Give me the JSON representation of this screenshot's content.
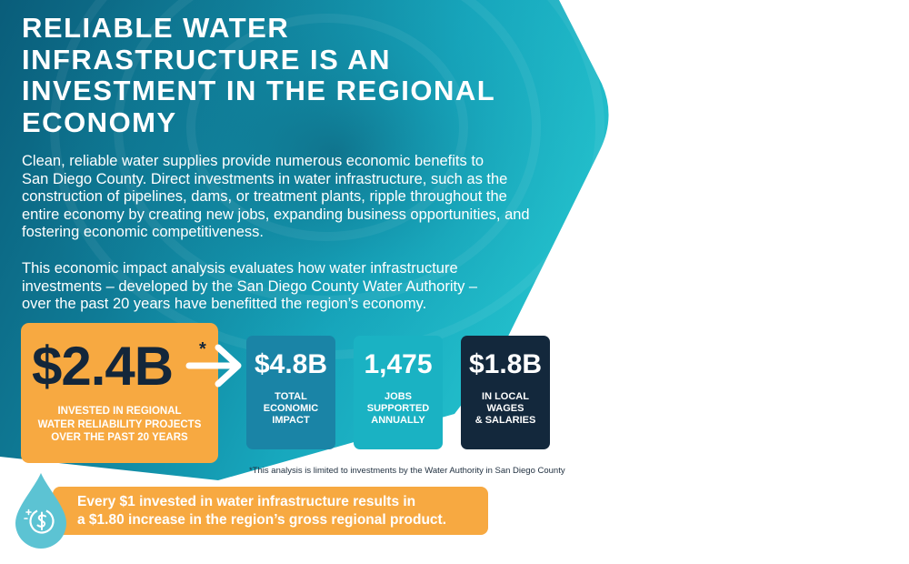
{
  "headline": {
    "lines": [
      "RELIABLE WATER",
      "INFRASTRUCTURE IS AN",
      "INVESTMENT IN THE REGIONAL",
      "ECONOMY"
    ]
  },
  "intro": {
    "paragraph1": [
      "Clean, reliable water supplies provide numerous economic benefits to",
      "San Diego County. Direct investments in water infrastructure, such as the",
      "construction of pipelines, dams, or treatment plants, ripple throughout the",
      "entire economy by creating new jobs, expanding business opportunities, and",
      "fostering economic competitiveness."
    ],
    "paragraph2": [
      "This economic impact analysis evaluates how water infrastructure",
      "investments – developed by the San Diego County Water Authority –",
      "over the past 20 years have benefitted the region’s economy."
    ]
  },
  "investment": {
    "value": "$2.4B",
    "marker": "*",
    "caption": [
      "INVESTED IN REGIONAL",
      "WATER RELIABILITY PROJECTS",
      "OVER THE PAST 20 YEARS"
    ]
  },
  "stats": [
    {
      "value": "$4.8B",
      "caption": [
        "TOTAL",
        "ECONOMIC",
        "IMPACT"
      ],
      "color": "#1a84a6"
    },
    {
      "value": "1,475",
      "caption": [
        "JOBS",
        "SUPPORTED",
        "ANNUALLY"
      ],
      "color": "#1ab2c3"
    },
    {
      "value": "$1.8B",
      "caption": [
        "IN LOCAL",
        "WAGES",
        "& SALARIES"
      ],
      "color": "#13283c"
    }
  ],
  "footnote": "*This analysis is limited to investments by the Water Authority in San Diego County",
  "callout": {
    "lines": [
      "Every $1 invested in water infrastructure results in",
      "a $1.80 increase in the region’s gross regional product."
    ],
    "icon": "water-drop-dollar-icon"
  },
  "colors": {
    "accent_orange": "#f7a941",
    "teal": "#1ab2c3",
    "blue": "#1a84a6",
    "navy": "#13283c",
    "drop": "#5cc3d3"
  }
}
